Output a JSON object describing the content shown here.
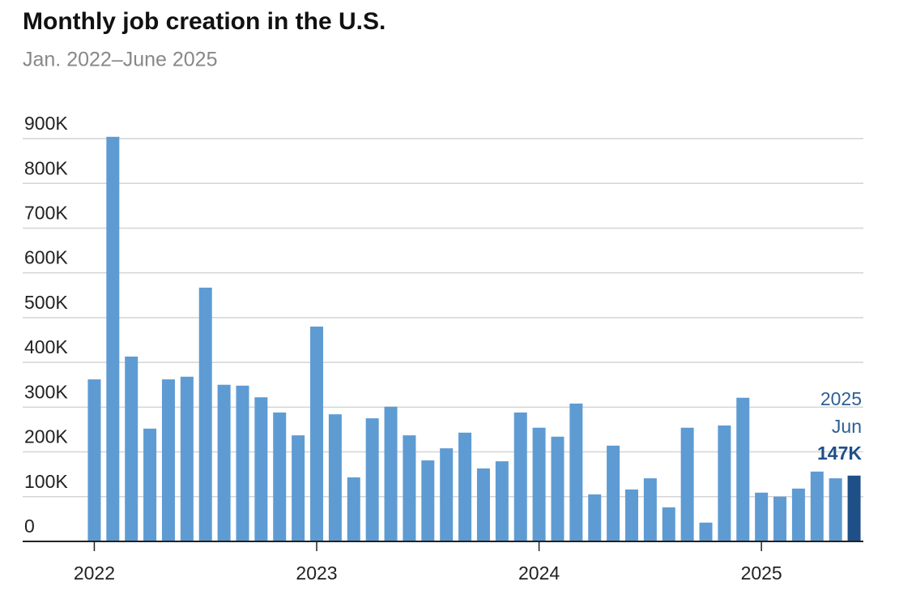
{
  "chart_data": {
    "type": "bar",
    "title": "Monthly job creation in the U.S.",
    "subtitle": "Jan. 2022–June 2025",
    "categories": [
      "2022",
      null,
      null,
      null,
      null,
      null,
      null,
      null,
      null,
      null,
      null,
      null,
      "2023",
      null,
      null,
      null,
      null,
      null,
      null,
      null,
      null,
      null,
      null,
      null,
      "2024",
      null,
      null,
      null,
      null,
      null,
      null,
      null,
      null,
      null,
      null,
      null,
      "2025",
      null,
      null,
      null,
      null,
      null
    ],
    "values": [
      362,
      904,
      413,
      252,
      362,
      368,
      567,
      350,
      348,
      322,
      288,
      237,
      480,
      284,
      143,
      275,
      301,
      237,
      181,
      208,
      243,
      163,
      179,
      288,
      254,
      234,
      308,
      105,
      214,
      116,
      141,
      76,
      254,
      42,
      259,
      321,
      109,
      100,
      118,
      156,
      141,
      147
    ],
    "value_labels": [
      null,
      null,
      null,
      null,
      null,
      null,
      null,
      null,
      null,
      null,
      null,
      null,
      null,
      null,
      null,
      null,
      null,
      null,
      null,
      null,
      null,
      null,
      null,
      null,
      null,
      null,
      null,
      null,
      null,
      null,
      null,
      null,
      null,
      null,
      null,
      null,
      null,
      null,
      null,
      null,
      null,
      "147K"
    ],
    "annotation": {
      "year": "2025",
      "month": "Jun"
    },
    "color": "#5e9bd3",
    "highlight_color": "#1f4f87",
    "ylim": [
      0,
      900
    ],
    "yticks": [
      0,
      {
        "value": 100,
        "label": "100K"
      },
      {
        "value": 200,
        "label": "200K"
      },
      {
        "value": 300,
        "label": "300K"
      },
      {
        "value": 400,
        "label": "400K"
      },
      {
        "value": 500,
        "label": "500K"
      },
      {
        "value": 600,
        "label": "600K"
      },
      {
        "value": 700,
        "label": "700K"
      },
      {
        "value": 800,
        "label": "800K"
      },
      {
        "value": 900,
        "label": "900K"
      }
    ],
    "grid": true
  }
}
